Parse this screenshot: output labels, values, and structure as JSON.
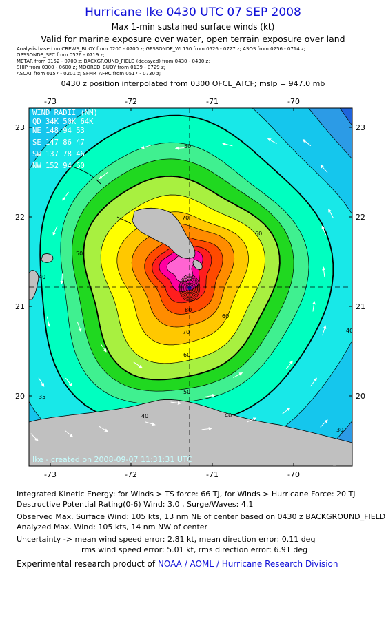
{
  "header": {
    "title": "Hurricane Ike 0430 UTC 07 SEP 2008",
    "subtitle": "Max 1-min sustained surface winds (kt)",
    "valid": "Valid for marine exposure over water, open terrain exposure over land",
    "sources": [
      "Analysis based on   CREWS_BUOY from 0200 - 0700 z;   GPSSONDE_WL150 from 0526 - 0727 z;   ASOS from 0256 - 0714 z;",
      "GPSSONDE_SFC from 0526 - 0719 z;",
      "METAR from 0152 - 0700 z;   BACKGROUND_FIELD (decayed) from 0430 - 0430 z;",
      "SHIP from 0300 - 0600 z;   MOORED_BUOY from 0139 - 0729 z;",
      "ASCAT from 0157 - 0201 z;   SFMR_AFRC from 0517 - 0730 z;"
    ],
    "position": "0430 z position interpolated from 0300 OFCL_ATCF; mslp = 947.0 mb"
  },
  "map": {
    "lon_ticks": [
      "-73",
      "-72",
      "-71",
      "-70"
    ],
    "lat_ticks": [
      "23",
      "22",
      "21",
      "20"
    ],
    "wind_radii": {
      "header": [
        "WIND RADII (NM)",
        "QD  34K  50K  64K"
      ],
      "rows": [
        [
          "NE",
          "148",
          "94",
          "53"
        ],
        [
          "SE",
          "147",
          "86",
          "47"
        ],
        [
          "SW",
          "137",
          "78",
          "46"
        ],
        [
          "NW",
          "152",
          "94",
          "60"
        ]
      ]
    },
    "contour_labels": [
      "30",
      "40",
      "40",
      "40",
      "40",
      "50",
      "50",
      "50",
      "60",
      "60",
      "60",
      "70",
      "70",
      "80",
      "35"
    ],
    "credit": "Ike - created on 2008-09-07 11:31:31 UTC",
    "colors": {
      "bands": [
        "#1f64dc",
        "#2c9be6",
        "#15c6ed",
        "#18e8e8",
        "#00ffc0",
        "#40f090",
        "#20d820",
        "#a8f040",
        "#ffff00",
        "#ffc800",
        "#ff8c00",
        "#ff4a00",
        "#ff1e1e",
        "#ff00a0",
        "#ff64d2"
      ],
      "land": "#c0c0c0",
      "center": "#1515a0"
    }
  },
  "footer": {
    "ike": "Integrated Kinetic Energy:  for Winds > TS force: 66 TJ,  for Winds > Hurricane Force: 20 TJ",
    "dpr": "Destructive Potential Rating(0-6)   Wind: 3.0 , Surge/Waves: 4.1",
    "observed": "Observed Max. Surface Wind: 105 kts, 13 nm NE of center based on 0430 z BACKGROUND_FIELD",
    "analyzed": "Analyzed Max. Wind: 105 kts, 14 nm NW of center",
    "uncertainty1": "Uncertainty -> mean wind speed error: 2.81 kt,   mean direction error: 0.11 deg",
    "uncertainty2": "rms wind speed error: 5.01 kt,   rms direction error: 6.91 deg",
    "product_prefix": "Experimental research product of ",
    "product_link": "NOAA / AOML / Hurricane Research Division"
  }
}
